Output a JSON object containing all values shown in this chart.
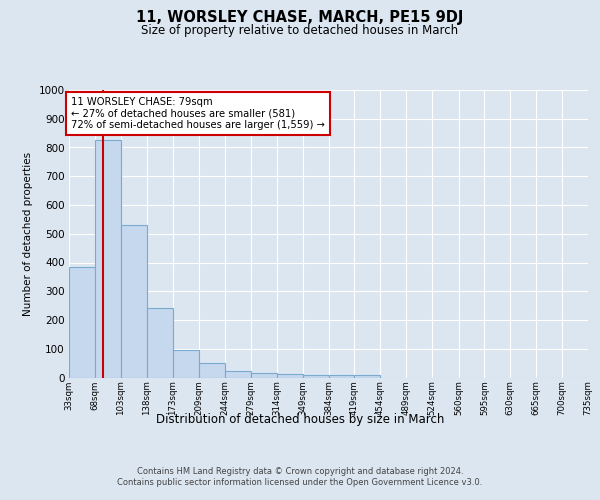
{
  "title": "11, WORSLEY CHASE, MARCH, PE15 9DJ",
  "subtitle": "Size of property relative to detached houses in March",
  "xlabel": "Distribution of detached houses by size in March",
  "ylabel": "Number of detached properties",
  "bar_color": "#c5d8ee",
  "bar_edge_color": "#7aaad0",
  "property_line_x": 79,
  "property_line_color": "#cc0000",
  "annotation_text": "11 WORSLEY CHASE: 79sqm\n← 27% of detached houses are smaller (581)\n72% of semi-detached houses are larger (1,559) →",
  "annotation_box_color": "#ffffff",
  "annotation_box_edge": "#cc0000",
  "bins": [
    33,
    68,
    103,
    138,
    173,
    209,
    244,
    279,
    314,
    349,
    384,
    419,
    454,
    489,
    524,
    560,
    595,
    630,
    665,
    700,
    735
  ],
  "counts": [
    385,
    825,
    530,
    242,
    95,
    50,
    22,
    15,
    12,
    8,
    8,
    8,
    0,
    0,
    0,
    0,
    0,
    0,
    0,
    0
  ],
  "ylim": [
    0,
    1000
  ],
  "yticks": [
    0,
    100,
    200,
    300,
    400,
    500,
    600,
    700,
    800,
    900,
    1000
  ],
  "footer": "Contains HM Land Registry data © Crown copyright and database right 2024.\nContains public sector information licensed under the Open Government Licence v3.0.",
  "background_color": "#dce6f0",
  "plot_background_color": "#dce6f0"
}
